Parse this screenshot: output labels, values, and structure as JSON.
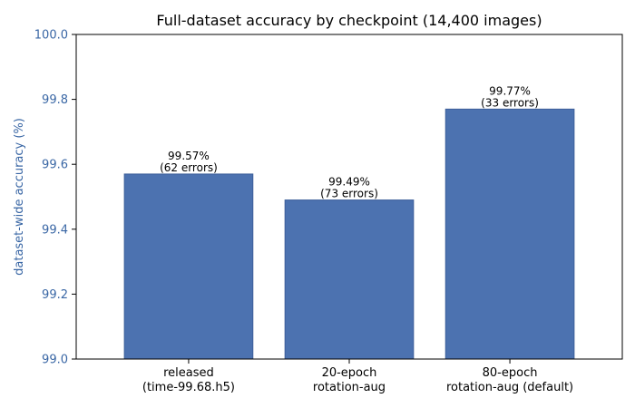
{
  "chart_data": {
    "type": "bar",
    "title": "Full-dataset accuracy by checkpoint (14,400 images)",
    "xlabel": "",
    "ylabel": "dataset-wide accuracy (%)",
    "ylim": [
      99.0,
      100.0
    ],
    "yticks": [
      "99.0",
      "99.2",
      "99.4",
      "99.6",
      "99.8",
      "100.0"
    ],
    "categories": [
      [
        "released",
        "(time-99.68.h5)"
      ],
      [
        "20-epoch",
        "rotation-aug"
      ],
      [
        "80-epoch",
        "rotation-aug (default)"
      ]
    ],
    "values": [
      99.57,
      99.49,
      99.77
    ],
    "data_labels": [
      [
        "99.57%",
        "(62 errors)"
      ],
      [
        "99.49%",
        "(73 errors)"
      ],
      [
        "99.77%",
        "(33 errors)"
      ]
    ],
    "grid": false,
    "colors": {
      "bar": "#4c72b0",
      "bar_edge": "#3d5f9a",
      "axis_label": "#3a67a5"
    }
  }
}
